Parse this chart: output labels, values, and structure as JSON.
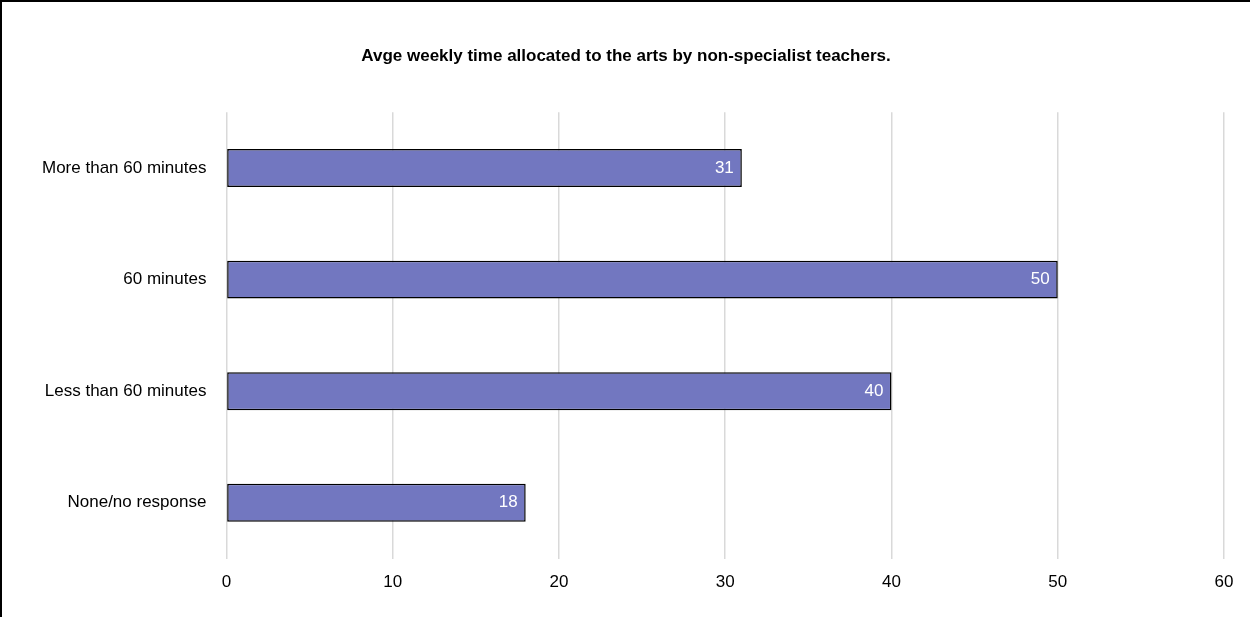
{
  "chart_data": {
    "type": "bar",
    "orientation": "horizontal",
    "title": "Avge weekly time allocated to the arts by non-specialist teachers.",
    "categories": [
      "More than 60 minutes",
      "60 minutes",
      "Less than 60 minutes",
      "None/no response"
    ],
    "values": [
      31,
      50,
      40,
      18
    ],
    "color": "#7277c0",
    "xlim": [
      0,
      60
    ],
    "xticks": [
      0,
      10,
      20,
      30,
      40,
      50,
      60
    ],
    "grid": "x",
    "data_labels": true
  }
}
